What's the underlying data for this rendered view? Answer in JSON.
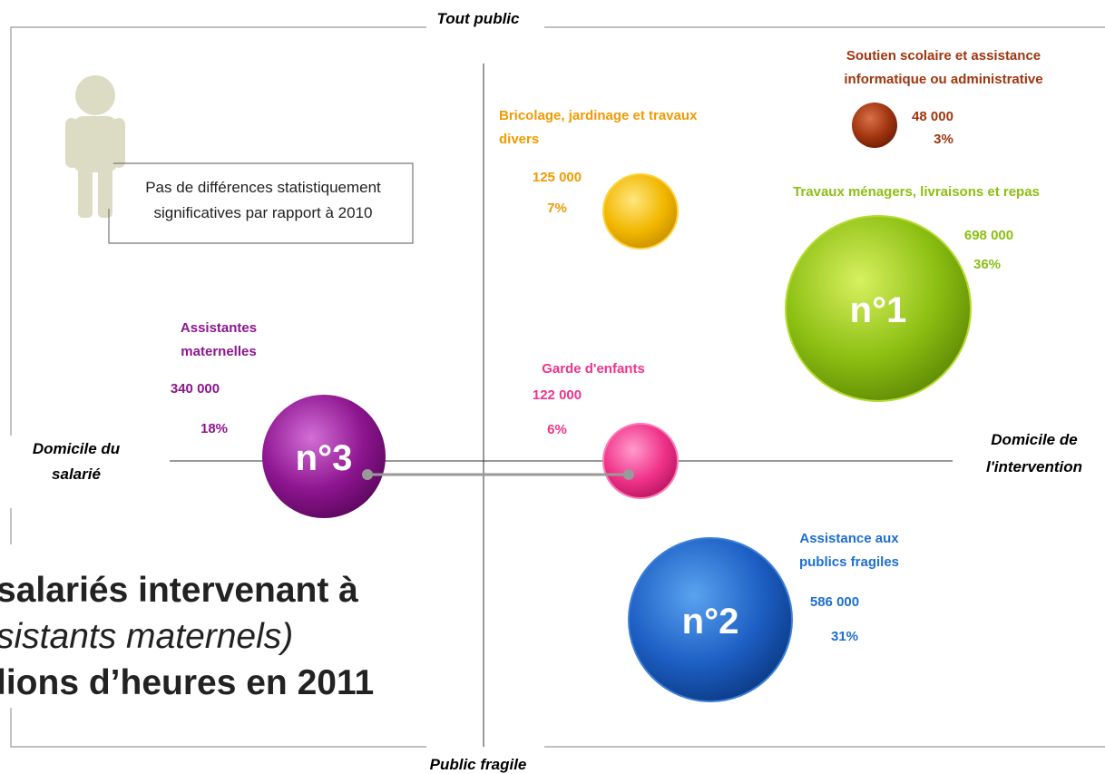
{
  "axes": {
    "top": "Tout public",
    "bottom": "Public fragile",
    "left": [
      "Domicile du",
      "salarié"
    ],
    "right": [
      "Domicile de",
      "l'intervention"
    ]
  },
  "note": [
    "Pas de différences statistiquement",
    "significatives par rapport à 2010"
  ],
  "headline": [
    "salariés intervenant à",
    "sistants maternels)",
    "lions d’heures en 2011"
  ],
  "bubbles": [
    {
      "label": [
        "Soutien scolaire et assistance",
        "informatique ou administrative"
      ],
      "count": "48 000",
      "share": "3%"
    },
    {
      "label": [
        "Bricolage, jardinage et travaux",
        "divers"
      ],
      "count": "125 000",
      "share": "7%"
    },
    {
      "label": [
        "Travaux ménagers, livraisons et repas"
      ],
      "count": "698 000",
      "share": "36%",
      "rank": "n°1"
    },
    {
      "label": [
        "Assistantes",
        "maternelles"
      ],
      "count": "340 000",
      "share": "18%",
      "rank": "n°3"
    },
    {
      "label": [
        "Garde d'enfants"
      ],
      "count": "122 000",
      "share": "6%"
    },
    {
      "label": [
        "Assistance aux",
        "publics fragiles"
      ],
      "count": "586 000",
      "share": "31%",
      "rank": "n°2"
    }
  ]
}
